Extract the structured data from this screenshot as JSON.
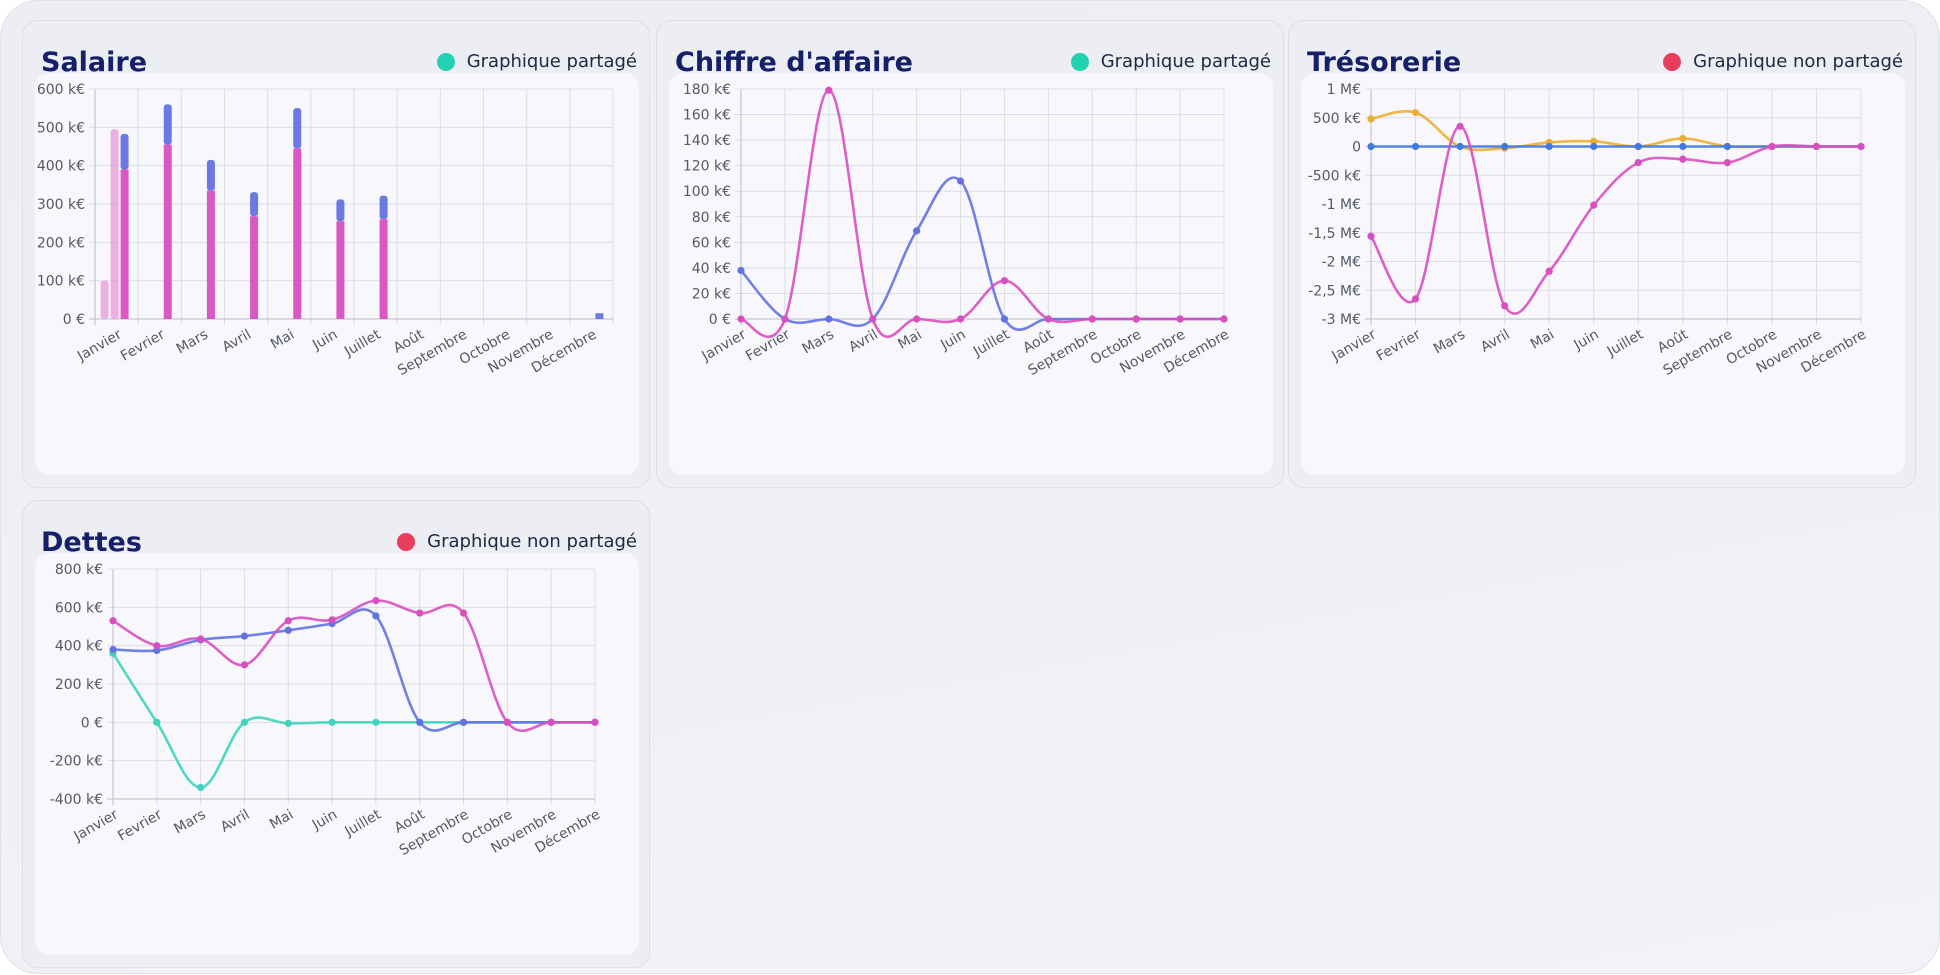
{
  "colors": {
    "shared": "#22d1b1",
    "not_shared": "#e83d5c",
    "title": "#152068",
    "blue": "#6472e0",
    "magenta": "#d84fc0",
    "lightpink": "#e9a2dc",
    "teal": "#3fd4bb",
    "orange": "#edad31",
    "steelblue": "#3f7ae0"
  },
  "months": [
    "Janvier",
    "Fevrier",
    "Mars",
    "Avril",
    "Mai",
    "Juin",
    "Juillet",
    "Août",
    "Septembre",
    "Octobre",
    "Novembre",
    "Décembre"
  ],
  "cards": [
    {
      "title": "Salaire",
      "status": "Graphique partagé",
      "status_icon": "status-dot-shared"
    },
    {
      "title": "Chiffre d'affaire",
      "status": "Graphique partagé",
      "status_icon": "status-dot-shared"
    },
    {
      "title": "Trésorerie",
      "status": "Graphique non partagé",
      "status_icon": "status-dot-not-shared"
    },
    {
      "title": "Dettes",
      "status": "Graphique non partagé",
      "status_icon": "status-dot-not-shared"
    }
  ],
  "chart_data": [
    {
      "type": "bar",
      "title": "Salaire",
      "categories": [
        "Janvier",
        "Fevrier",
        "Mars",
        "Avril",
        "Mai",
        "Juin",
        "Juillet",
        "Août",
        "Septembre",
        "Octobre",
        "Novembre",
        "Décembre"
      ],
      "ylim": [
        0,
        600
      ],
      "yticks": [
        0,
        100,
        200,
        300,
        400,
        500,
        600
      ],
      "ytick_labels": [
        "0 €",
        "100 k€",
        "200 k€",
        "300 k€",
        "400 k€",
        "500 k€",
        "600 k€"
      ],
      "grid": true,
      "series": [
        {
          "color": "lightpink",
          "values": [
            100,
            0,
            0,
            0,
            0,
            0,
            0,
            0,
            0,
            0,
            0,
            0
          ],
          "stack": "a"
        },
        {
          "color": "lightpink",
          "values": [
            495,
            0,
            0,
            0,
            0,
            0,
            0,
            0,
            0,
            0,
            0,
            0
          ],
          "stack": "b"
        },
        {
          "color": "magenta",
          "values": [
            390,
            455,
            335,
            268,
            445,
            255,
            260,
            0,
            0,
            0,
            0,
            0
          ],
          "stack": "c"
        },
        {
          "color": "blue",
          "values": [
            93,
            105,
            80,
            63,
            105,
            57,
            62,
            0,
            0,
            0,
            0,
            15
          ],
          "stack": "c"
        }
      ]
    },
    {
      "type": "line",
      "title": "Chiffre d'affaire",
      "categories": [
        "Janvier",
        "Fevrier",
        "Mars",
        "Avril",
        "Mai",
        "Juin",
        "Juillet",
        "Août",
        "Septembre",
        "Octobre",
        "Novembre",
        "Décembre"
      ],
      "ylim": [
        0,
        180
      ],
      "yticks": [
        0,
        20,
        40,
        60,
        80,
        100,
        120,
        140,
        160,
        180
      ],
      "ytick_labels": [
        "0 €",
        "20 k€",
        "40 k€",
        "60 k€",
        "80 k€",
        "100 k€",
        "120 k€",
        "140 k€",
        "160 k€",
        "180 k€"
      ],
      "grid": true,
      "series": [
        {
          "color": "blue",
          "values": [
            38,
            0,
            0,
            0,
            69,
            108,
            0,
            0,
            0,
            0,
            0,
            0
          ]
        },
        {
          "color": "magenta",
          "values": [
            0,
            0,
            179,
            0,
            0,
            0,
            30,
            0,
            0,
            0,
            0,
            0
          ]
        }
      ]
    },
    {
      "type": "line",
      "title": "Trésorerie",
      "categories": [
        "Janvier",
        "Fevrier",
        "Mars",
        "Avril",
        "Mai",
        "Juin",
        "Juillet",
        "Août",
        "Septembre",
        "Octobre",
        "Novembre",
        "Décembre"
      ],
      "ylim": [
        -3000,
        1000
      ],
      "yticks": [
        -3000,
        -2500,
        -2000,
        -1500,
        -1000,
        -500,
        0,
        500,
        1000
      ],
      "ytick_labels": [
        "-3 M€",
        "-2,5 M€",
        "-2 M€",
        "-1,5 M€",
        "-1 M€",
        "-500 k€",
        "0",
        "500 k€",
        "1 M€"
      ],
      "grid": true,
      "series": [
        {
          "color": "orange",
          "values": [
            480,
            590,
            0,
            -30,
            70,
            90,
            0,
            140,
            0,
            0,
            0,
            0
          ]
        },
        {
          "color": "steelblue",
          "values": [
            0,
            0,
            0,
            0,
            0,
            0,
            0,
            0,
            0,
            0,
            0,
            0
          ]
        },
        {
          "color": "magenta",
          "values": [
            -1560,
            -2650,
            350,
            -2770,
            -2170,
            -1020,
            -280,
            -220,
            -280,
            0,
            0,
            0
          ]
        }
      ]
    },
    {
      "type": "line",
      "title": "Dettes",
      "categories": [
        "Janvier",
        "Fevrier",
        "Mars",
        "Avril",
        "Mai",
        "Juin",
        "Juillet",
        "Août",
        "Septembre",
        "Octobre",
        "Novembre",
        "Décembre"
      ],
      "ylim": [
        -400,
        800
      ],
      "yticks": [
        -400,
        -200,
        0,
        200,
        400,
        600,
        800
      ],
      "ytick_labels": [
        "-400 k€",
        "-200 k€",
        "0 €",
        "200 k€",
        "400 k€",
        "600 k€",
        "800 k€"
      ],
      "grid": true,
      "series": [
        {
          "color": "teal",
          "values": [
            360,
            0,
            -340,
            0,
            -5,
            0,
            0,
            0,
            0,
            0,
            0,
            0
          ]
        },
        {
          "color": "blue",
          "values": [
            380,
            375,
            430,
            450,
            480,
            515,
            555,
            0,
            0,
            0,
            0,
            0
          ]
        },
        {
          "color": "magenta",
          "values": [
            530,
            400,
            435,
            300,
            530,
            535,
            635,
            570,
            570,
            0,
            0,
            0
          ]
        }
      ]
    }
  ]
}
